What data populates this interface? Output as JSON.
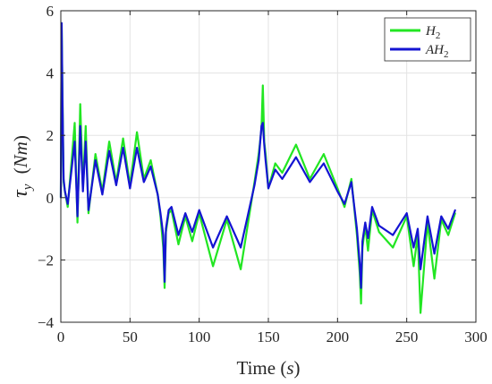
{
  "chart_data": {
    "type": "line",
    "xlabel": "Time (s)",
    "xlabel_main": "Time",
    "xlabel_unit": "s",
    "ylabel": "τ_y (Nm)",
    "ylabel_symbol": "τ",
    "ylabel_subscript": "y",
    "ylabel_unit": "Nm",
    "xlim": [
      0,
      300
    ],
    "ylim": [
      -4,
      6
    ],
    "xticks": [
      0,
      50,
      100,
      150,
      200,
      250,
      300
    ],
    "yticks": [
      -4,
      -2,
      0,
      2,
      4,
      6
    ],
    "grid": true,
    "legend_position": "top-right",
    "series": [
      {
        "name": "H2",
        "name_base": "H",
        "name_sub": "2",
        "color": "#22e622",
        "x": [
          0,
          0.6,
          1.2,
          2,
          3,
          5,
          8,
          10,
          12,
          14,
          16,
          18,
          20,
          25,
          30,
          35,
          40,
          45,
          50,
          55,
          60,
          65,
          70,
          72,
          74,
          75,
          76,
          78,
          80,
          85,
          90,
          95,
          100,
          110,
          120,
          130,
          140,
          143,
          145,
          146,
          147,
          148,
          150,
          155,
          160,
          170,
          180,
          190,
          200,
          205,
          210,
          214,
          216,
          217,
          218,
          220,
          222,
          225,
          230,
          240,
          250,
          255,
          258,
          260,
          265,
          270,
          275,
          280,
          285
        ],
        "y": [
          0,
          5.6,
          3.2,
          0.5,
          0.2,
          -0.3,
          1.3,
          2.4,
          -0.8,
          3.0,
          0.3,
          2.3,
          -0.5,
          1.4,
          0.2,
          1.8,
          0.5,
          1.9,
          0.4,
          2.1,
          0.6,
          1.2,
          0.1,
          -0.6,
          -1.6,
          -2.9,
          -1.1,
          -0.5,
          -0.4,
          -1.5,
          -0.6,
          -1.4,
          -0.5,
          -2.2,
          -0.7,
          -2.3,
          0.5,
          1.4,
          2.2,
          3.6,
          1.8,
          1.4,
          0.3,
          1.1,
          0.8,
          1.7,
          0.6,
          1.4,
          0.3,
          -0.3,
          0.6,
          -1.2,
          -2.4,
          -3.4,
          -1.6,
          -0.9,
          -1.7,
          -0.4,
          -1.1,
          -1.6,
          -0.6,
          -2.2,
          -1.2,
          -3.7,
          -0.8,
          -2.6,
          -0.7,
          -1.2,
          -0.5
        ]
      },
      {
        "name": "AH2",
        "name_base": "AH",
        "name_sub": "2",
        "color": "#1414d2",
        "x": [
          0,
          0.6,
          1.2,
          2,
          3,
          5,
          8,
          10,
          12,
          14,
          16,
          18,
          20,
          25,
          30,
          35,
          40,
          45,
          50,
          55,
          60,
          65,
          70,
          72,
          74,
          75,
          76,
          78,
          80,
          85,
          90,
          95,
          100,
          110,
          120,
          130,
          140,
          143,
          145,
          146,
          147,
          148,
          150,
          155,
          160,
          170,
          180,
          190,
          200,
          205,
          210,
          214,
          216,
          217,
          218,
          220,
          222,
          225,
          230,
          240,
          250,
          255,
          258,
          260,
          265,
          270,
          275,
          280,
          285
        ],
        "y": [
          0,
          5.6,
          3.0,
          0.6,
          0.2,
          -0.2,
          1.0,
          1.8,
          -0.6,
          2.3,
          0.2,
          1.8,
          -0.4,
          1.2,
          0.1,
          1.5,
          0.4,
          1.6,
          0.3,
          1.6,
          0.5,
          1.0,
          0.1,
          -0.5,
          -1.2,
          -2.7,
          -1.0,
          -0.4,
          -0.3,
          -1.2,
          -0.5,
          -1.1,
          -0.4,
          -1.6,
          -0.6,
          -1.6,
          0.4,
          1.2,
          2.3,
          2.4,
          1.7,
          1.2,
          0.3,
          0.9,
          0.6,
          1.3,
          0.5,
          1.1,
          0.2,
          -0.2,
          0.5,
          -1.0,
          -2.1,
          -2.9,
          -1.4,
          -0.8,
          -1.3,
          -0.3,
          -0.9,
          -1.2,
          -0.5,
          -1.6,
          -1.0,
          -2.3,
          -0.6,
          -1.8,
          -0.6,
          -1.0,
          -0.4
        ]
      }
    ]
  }
}
